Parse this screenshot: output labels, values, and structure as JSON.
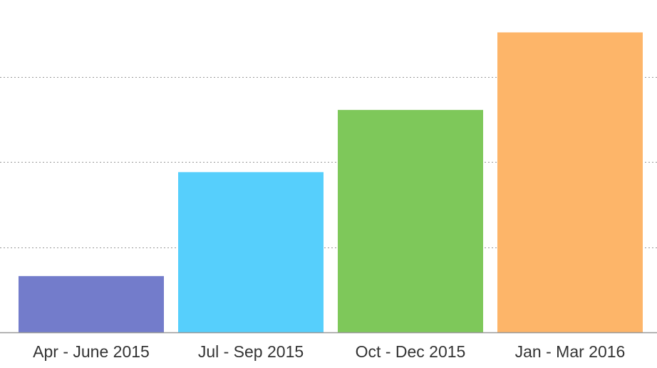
{
  "chart_data": {
    "type": "bar",
    "title": "",
    "xlabel": "",
    "ylabel": "",
    "categories": [
      "Apr - June 2015",
      "Jul - Sep 2015",
      "Oct - Dec 2015",
      "Jan - Mar 2016"
    ],
    "values": [
      0.66,
      1.88,
      2.61,
      3.52
    ],
    "ylim": [
      0,
      3.85
    ],
    "gridlines": [
      1,
      2,
      3
    ],
    "grid": true,
    "y_axis_labels_shown": false,
    "legend": "none",
    "colors": [
      "#737ccb",
      "#56cffc",
      "#7ec85a",
      "#fdb569"
    ],
    "gridline_color": "#9a9a9a",
    "baseline_color": "#999999",
    "label_color": "#333333"
  }
}
